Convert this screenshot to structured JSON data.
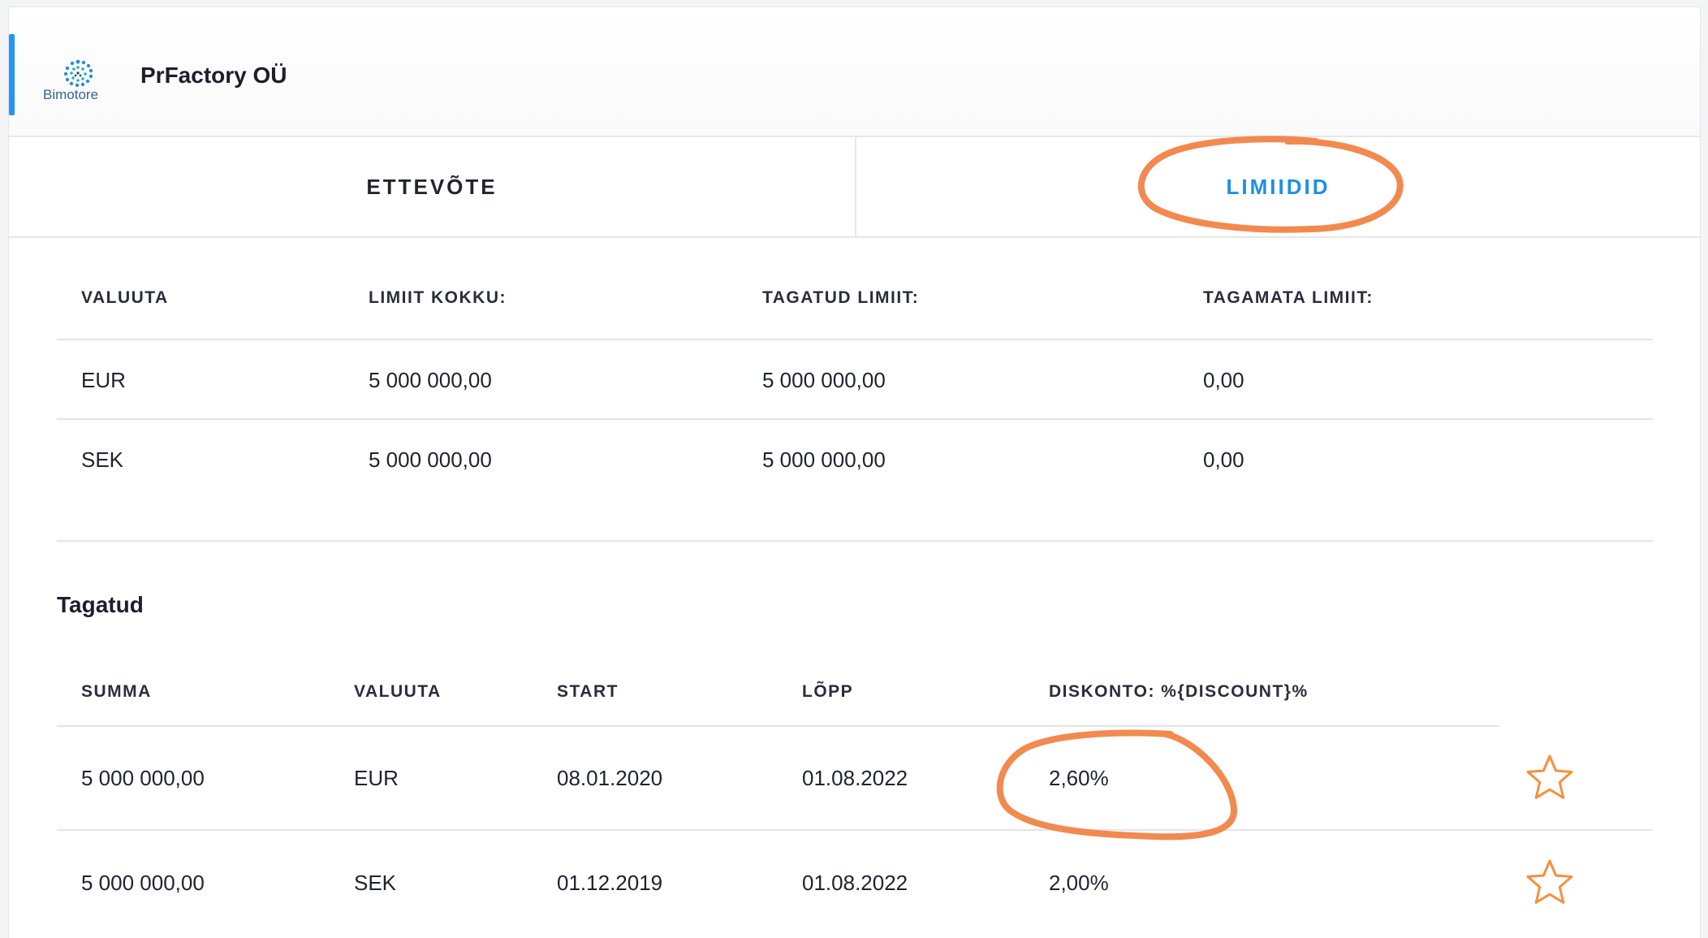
{
  "company": {
    "logo_text": "Bimotore",
    "name": "PrFactory OÜ"
  },
  "tabs": [
    {
      "label": "ETTEVÕTE",
      "active": false
    },
    {
      "label": "LIMIIDID",
      "active": true
    }
  ],
  "limits": {
    "headers": [
      "VALUUTA",
      "LIMIIT KOKKU:",
      "TAGATUD LIMIIT:",
      "TAGAMATA LIMIIT:"
    ],
    "rows": [
      [
        "EUR",
        "5 000 000,00",
        "5 000 000,00",
        "0,00"
      ],
      [
        "SEK",
        "5 000 000,00",
        "5 000 000,00",
        "0,00"
      ]
    ]
  },
  "secured": {
    "title": "Tagatud",
    "headers": [
      "SUMMA",
      "VALUUTA",
      "START",
      "LÕPP",
      "DISKONTO: %{DISCOUNT}%"
    ],
    "rows": [
      [
        "5 000 000,00",
        "EUR",
        "08.01.2020",
        "01.08.2022",
        "2,60%"
      ],
      [
        "5 000 000,00",
        "SEK",
        "01.12.2019",
        "01.08.2022",
        "2,00%"
      ]
    ],
    "row_icon": "star-outline-icon"
  },
  "colors": {
    "accent": "#2196f3",
    "active_tab": "#1d8fe6",
    "annotation": "#f28a4f",
    "star": "#f5913e"
  }
}
